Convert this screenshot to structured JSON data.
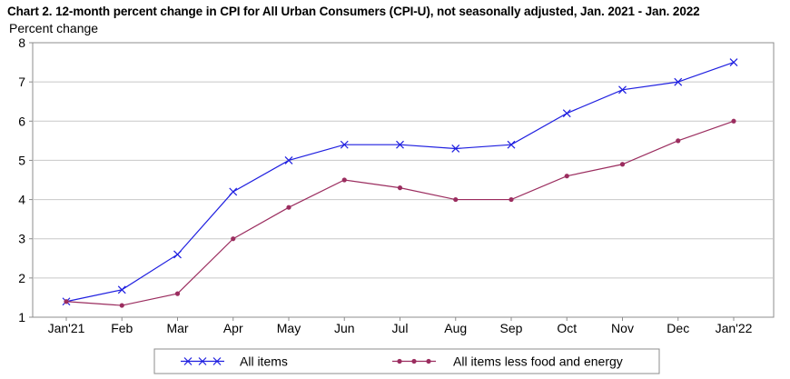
{
  "chart_data": {
    "type": "line",
    "title": "Chart 2. 12-month percent change in CPI for All Urban Consumers (CPI-U), not seasonally adjusted, Jan. 2021 - Jan. 2022",
    "ylabel": "Percent change",
    "xlabel": "",
    "categories": [
      "Jan'21",
      "Feb",
      "Mar",
      "Apr",
      "May",
      "Jun",
      "Jul",
      "Aug",
      "Sep",
      "Oct",
      "Nov",
      "Dec",
      "Jan'22"
    ],
    "ylim": [
      1,
      8
    ],
    "yticks": [
      "1",
      "2",
      "3",
      "4",
      "5",
      "6",
      "7",
      "8"
    ],
    "grid": true,
    "legend_position": "bottom",
    "series": [
      {
        "name": "All items",
        "color": "#1f1fe0",
        "marker": "x",
        "values": [
          1.4,
          1.7,
          2.6,
          4.2,
          5.0,
          5.4,
          5.4,
          5.3,
          5.4,
          6.2,
          6.8,
          7.0,
          7.5
        ]
      },
      {
        "name": "All items less food and energy",
        "color": "#9b2d5f",
        "marker": "dot",
        "values": [
          1.4,
          1.3,
          1.6,
          3.0,
          3.8,
          4.5,
          4.3,
          4.0,
          4.0,
          4.6,
          4.9,
          5.5,
          6.0
        ]
      }
    ]
  }
}
